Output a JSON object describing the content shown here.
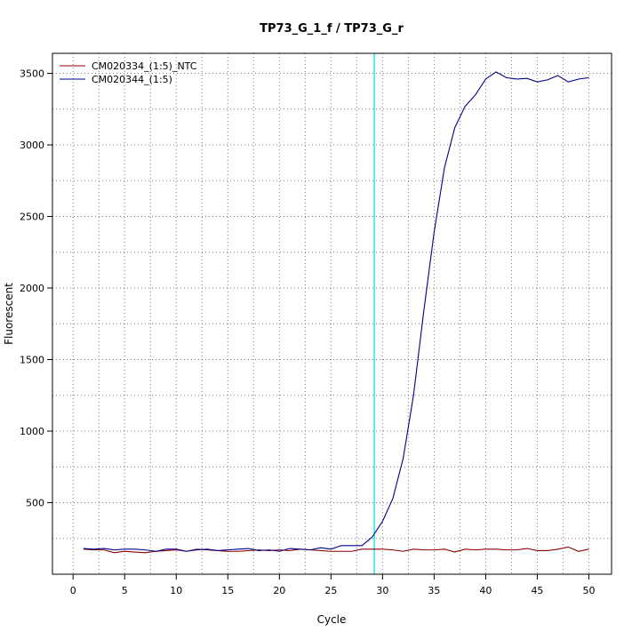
{
  "chart_data": {
    "type": "line",
    "title": "TP73_G_1_f / TP73_G_r",
    "xlabel": "Cycle",
    "ylabel": "Fluorescent",
    "xlim": [
      -2,
      52.2
    ],
    "ylim": [
      0,
      3640
    ],
    "xticks": [
      0,
      5,
      10,
      15,
      20,
      25,
      30,
      35,
      40,
      45,
      50
    ],
    "yticks": [
      500,
      1000,
      1500,
      2000,
      2500,
      3000,
      3500
    ],
    "grid": true,
    "legend_position": "top-left",
    "threshold_cycle": 29.2,
    "threshold_color": "#00e5ee",
    "x": [
      1,
      2,
      3,
      4,
      5,
      6,
      7,
      8,
      9,
      10,
      11,
      12,
      13,
      14,
      15,
      16,
      17,
      18,
      19,
      20,
      21,
      22,
      23,
      24,
      25,
      26,
      27,
      28,
      29,
      30,
      31,
      32,
      33,
      34,
      35,
      36,
      37,
      38,
      39,
      40,
      41,
      42,
      43,
      44,
      45,
      46,
      47,
      48,
      49,
      50
    ],
    "series": [
      {
        "name": "CM020334_(1:5)_NTC",
        "color": "#8b0000",
        "values": [
          175,
          170,
          170,
          150,
          160,
          155,
          150,
          160,
          165,
          170,
          160,
          175,
          170,
          165,
          160,
          160,
          165,
          170,
          165,
          170,
          165,
          175,
          170,
          165,
          160,
          160,
          160,
          175,
          175,
          175,
          170,
          160,
          175,
          170,
          170,
          175,
          155,
          175,
          170,
          175,
          175,
          170,
          170,
          180,
          165,
          165,
          175,
          190,
          160,
          175
        ]
      },
      {
        "name": "CM020344_(1:5)",
        "color": "#00008b",
        "values": [
          180,
          175,
          180,
          170,
          175,
          175,
          170,
          160,
          175,
          175,
          160,
          170,
          175,
          165,
          170,
          175,
          180,
          165,
          170,
          160,
          180,
          175,
          170,
          185,
          175,
          200,
          200,
          200,
          260,
          370,
          530,
          810,
          1250,
          1840,
          2390,
          2840,
          3120,
          3270,
          3350,
          3460,
          3510,
          3470,
          3460,
          3465,
          3440,
          3455,
          3485,
          3440,
          3460,
          3470
        ]
      }
    ]
  }
}
